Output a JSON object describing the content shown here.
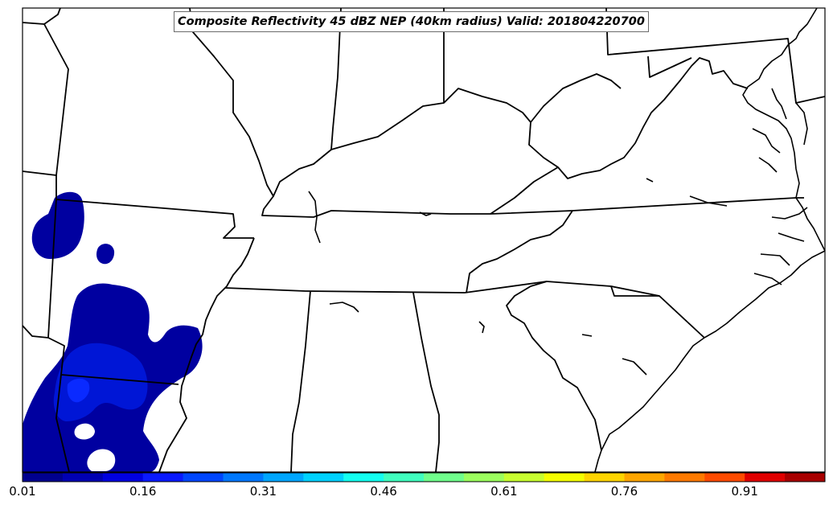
{
  "map": {
    "title": "Composite Reflectivity 45 dBZ NEP (40km radius) Valid: 201804220700",
    "region": "Southeastern United States"
  },
  "colorbar": {
    "min": 0.01,
    "max": 1.0,
    "bin_count": 20,
    "tick_labels": [
      "0.01",
      "0.16",
      "0.31",
      "0.46",
      "0.61",
      "0.76",
      "0.91"
    ],
    "colors": [
      "#00008f",
      "#0000b3",
      "#0000e0",
      "#0a1aff",
      "#0046ff",
      "#0078ff",
      "#00a6ff",
      "#00d2ff",
      "#14fff0",
      "#40ffbf",
      "#70ff8c",
      "#9cff5e",
      "#c8ff30",
      "#f5ff00",
      "#ffd500",
      "#ffa600",
      "#ff7a00",
      "#ff4b00",
      "#e00000",
      "#a80000"
    ]
  },
  "probability_areas": [
    {
      "level": "low",
      "color": "#0000a0"
    },
    {
      "level": "medium",
      "color": "#0016d6"
    },
    {
      "level": "high",
      "color": "#0a2aff"
    }
  ],
  "colors": {
    "border": "#000000",
    "background": "#ffffff",
    "frame": "#000000"
  }
}
